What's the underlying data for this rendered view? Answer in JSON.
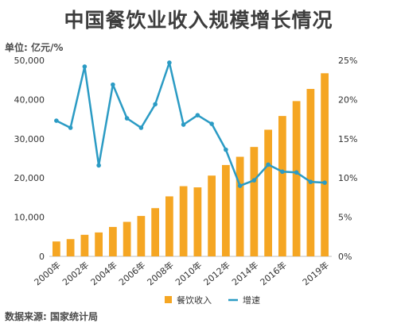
{
  "chart_data": {
    "type": "bar",
    "title": "中国餐饮业收入规模增长情况",
    "unit_label": "单位: 亿元/%",
    "source": "数据来源: 国家统计局",
    "categories": [
      "2000",
      "2001",
      "2002",
      "2003",
      "2004",
      "2005",
      "2006",
      "2007",
      "2008",
      "2009",
      "2010",
      "2011",
      "2012",
      "2013",
      "2014",
      "2015",
      "2016",
      "2017",
      "2018",
      "2019"
    ],
    "x_tick_labels": [
      "2000年",
      "2002年",
      "2004年",
      "2006年",
      "2008年",
      "2010年",
      "2012年",
      "2014年",
      "2016年",
      "2019年"
    ],
    "x_tick_categories": [
      "2000",
      "2002",
      "2004",
      "2006",
      "2008",
      "2010",
      "2012",
      "2014",
      "2016",
      "2019"
    ],
    "series": [
      {
        "name": "餐饮收入",
        "type": "bar",
        "axis": "left",
        "color": "#f5a623",
        "values": [
          3800,
          4400,
          5500,
          6100,
          7500,
          8800,
          10300,
          12300,
          15300,
          17900,
          17600,
          20600,
          23300,
          25400,
          27900,
          32300,
          35800,
          39600,
          42700,
          46700
        ]
      },
      {
        "name": "增速",
        "type": "line",
        "axis": "right",
        "color": "#2b9bc4",
        "values": [
          17.3,
          16.4,
          24.2,
          11.6,
          21.9,
          17.6,
          16.4,
          19.4,
          24.7,
          16.8,
          18.0,
          16.9,
          13.6,
          9.0,
          9.7,
          11.7,
          10.8,
          10.7,
          9.5,
          9.4
        ]
      }
    ],
    "y_left": {
      "min": 0,
      "max": 50000,
      "ticks": [
        0,
        10000,
        20000,
        30000,
        40000,
        50000
      ],
      "tick_labels": [
        "0",
        "10,000",
        "20,000",
        "30,000",
        "40,000",
        "50,000"
      ]
    },
    "y_right": {
      "min": 0,
      "max": 25,
      "ticks": [
        0,
        5,
        10,
        15,
        20,
        25
      ],
      "tick_labels": [
        "0%",
        "5%",
        "10%",
        "15%",
        "20%",
        "25%"
      ]
    },
    "grid": false,
    "legend_position": "bottom"
  }
}
